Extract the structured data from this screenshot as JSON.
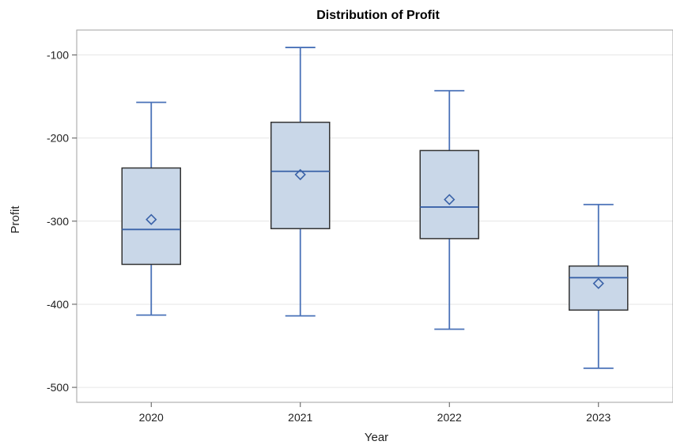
{
  "chart_data": {
    "type": "box",
    "title": "Distribution of Profit",
    "xlabel": "Year",
    "ylabel": "Profit",
    "ylim": [
      -518,
      -70
    ],
    "yticks": [
      -100,
      -200,
      -300,
      -400,
      -500
    ],
    "ytick_labels": [
      "-100",
      "-200",
      "-300",
      "-400",
      "-500"
    ],
    "grid": true,
    "categories": [
      "2020",
      "2021",
      "2022",
      "2023"
    ],
    "boxes": [
      {
        "category": "2020",
        "min": -413,
        "q1": -352,
        "median": -310,
        "q3": -236,
        "max": -157,
        "mean": -298
      },
      {
        "category": "2021",
        "min": -414,
        "q1": -309,
        "median": -240,
        "q3": -181,
        "max": -91,
        "mean": -244
      },
      {
        "category": "2022",
        "min": -430,
        "q1": -321,
        "median": -283,
        "q3": -215,
        "max": -143,
        "mean": -274
      },
      {
        "category": "2023",
        "min": -477,
        "q1": -407,
        "median": -368,
        "q3": -354,
        "max": -280,
        "mean": -375
      }
    ],
    "colors": {
      "box_fill": "#c9d7e8",
      "box_edge": "#333333",
      "median": "#3a62a8",
      "whisker": "#4a72b8",
      "mean_marker": "#3a62a8",
      "grid": "#e6e6e6",
      "frame": "#a0a0a0"
    }
  }
}
